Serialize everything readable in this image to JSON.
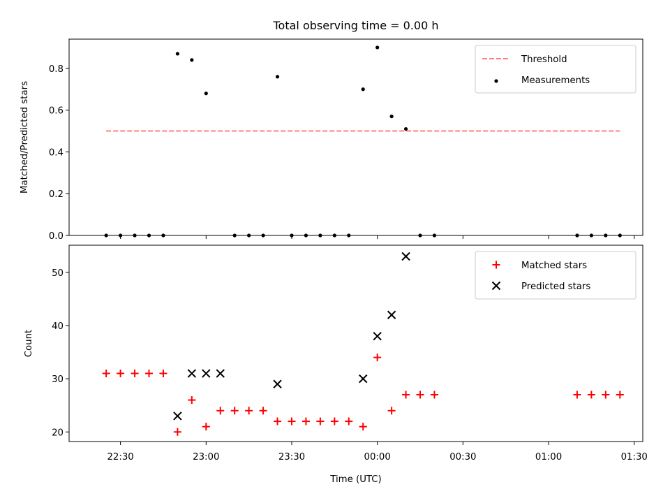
{
  "chart_data": {
    "title": "Total observing time = 0.00 h",
    "xlabel": "Time (UTC)",
    "x_tick_labels": [
      "22:30",
      "23:00",
      "23:30",
      "00:00",
      "00:30",
      "01:00",
      "01:30"
    ],
    "x_ticks_minutes": [
      -90,
      -60,
      -30,
      0,
      30,
      60,
      90
    ],
    "xlim_minutes": [
      -108,
      93
    ],
    "panels": [
      {
        "type": "scatter",
        "ylabel": "Matched/Predicted stars",
        "ylim": [
          0,
          0.94
        ],
        "y_ticks": [
          0.0,
          0.2,
          0.4,
          0.6,
          0.8
        ],
        "y_tick_labels": [
          "0.0",
          "0.2",
          "0.4",
          "0.6",
          "0.8"
        ],
        "legend_position": "top-right",
        "series": [
          {
            "name": "Threshold",
            "kind": "dashed-line",
            "color": "#ff7f7f",
            "x": [
              -95,
              85
            ],
            "y": [
              0.5,
              0.5
            ]
          },
          {
            "name": "Measurements",
            "kind": "dot",
            "color": "#000000",
            "x": [
              -95,
              -90,
              -85,
              -80,
              -75,
              -70,
              -65,
              -60,
              -50,
              -45,
              -40,
              -35,
              -30,
              -25,
              -20,
              -15,
              -10,
              -5,
              0,
              5,
              10,
              15,
              20,
              70,
              75,
              80,
              85
            ],
            "y": [
              0,
              0,
              0,
              0,
              0,
              0.87,
              0.84,
              0.68,
              0,
              0,
              0,
              0.76,
              0,
              0,
              0,
              0,
              0,
              0.7,
              0.9,
              0.57,
              0.51,
              0,
              0,
              0,
              0,
              0,
              0
            ]
          }
        ]
      },
      {
        "type": "scatter",
        "ylabel": "Count",
        "ylim": [
          18.2,
          55.1
        ],
        "y_ticks": [
          20,
          30,
          40,
          50
        ],
        "y_tick_labels": [
          "20",
          "30",
          "40",
          "50"
        ],
        "legend_position": "top-right",
        "series": [
          {
            "name": "Matched stars",
            "kind": "plus",
            "color": "#ff0000",
            "x": [
              -95,
              -90,
              -85,
              -80,
              -75,
              -70,
              -65,
              -60,
              -55,
              -50,
              -45,
              -40,
              -35,
              -30,
              -25,
              -20,
              -15,
              -10,
              -5,
              0,
              5,
              10,
              15,
              20,
              70,
              75,
              80,
              85
            ],
            "y": [
              31,
              31,
              31,
              31,
              31,
              20,
              26,
              21,
              24,
              24,
              24,
              24,
              22,
              22,
              22,
              22,
              22,
              22,
              21,
              34,
              24,
              27,
              27,
              27,
              27,
              27,
              27,
              27
            ]
          },
          {
            "name": "Predicted stars",
            "kind": "x",
            "color": "#000000",
            "x": [
              -70,
              -65,
              -60,
              -55,
              -35,
              -5,
              0,
              5,
              10
            ],
            "y": [
              23,
              31,
              31,
              31,
              29,
              30,
              38,
              42,
              53
            ]
          }
        ]
      }
    ]
  }
}
